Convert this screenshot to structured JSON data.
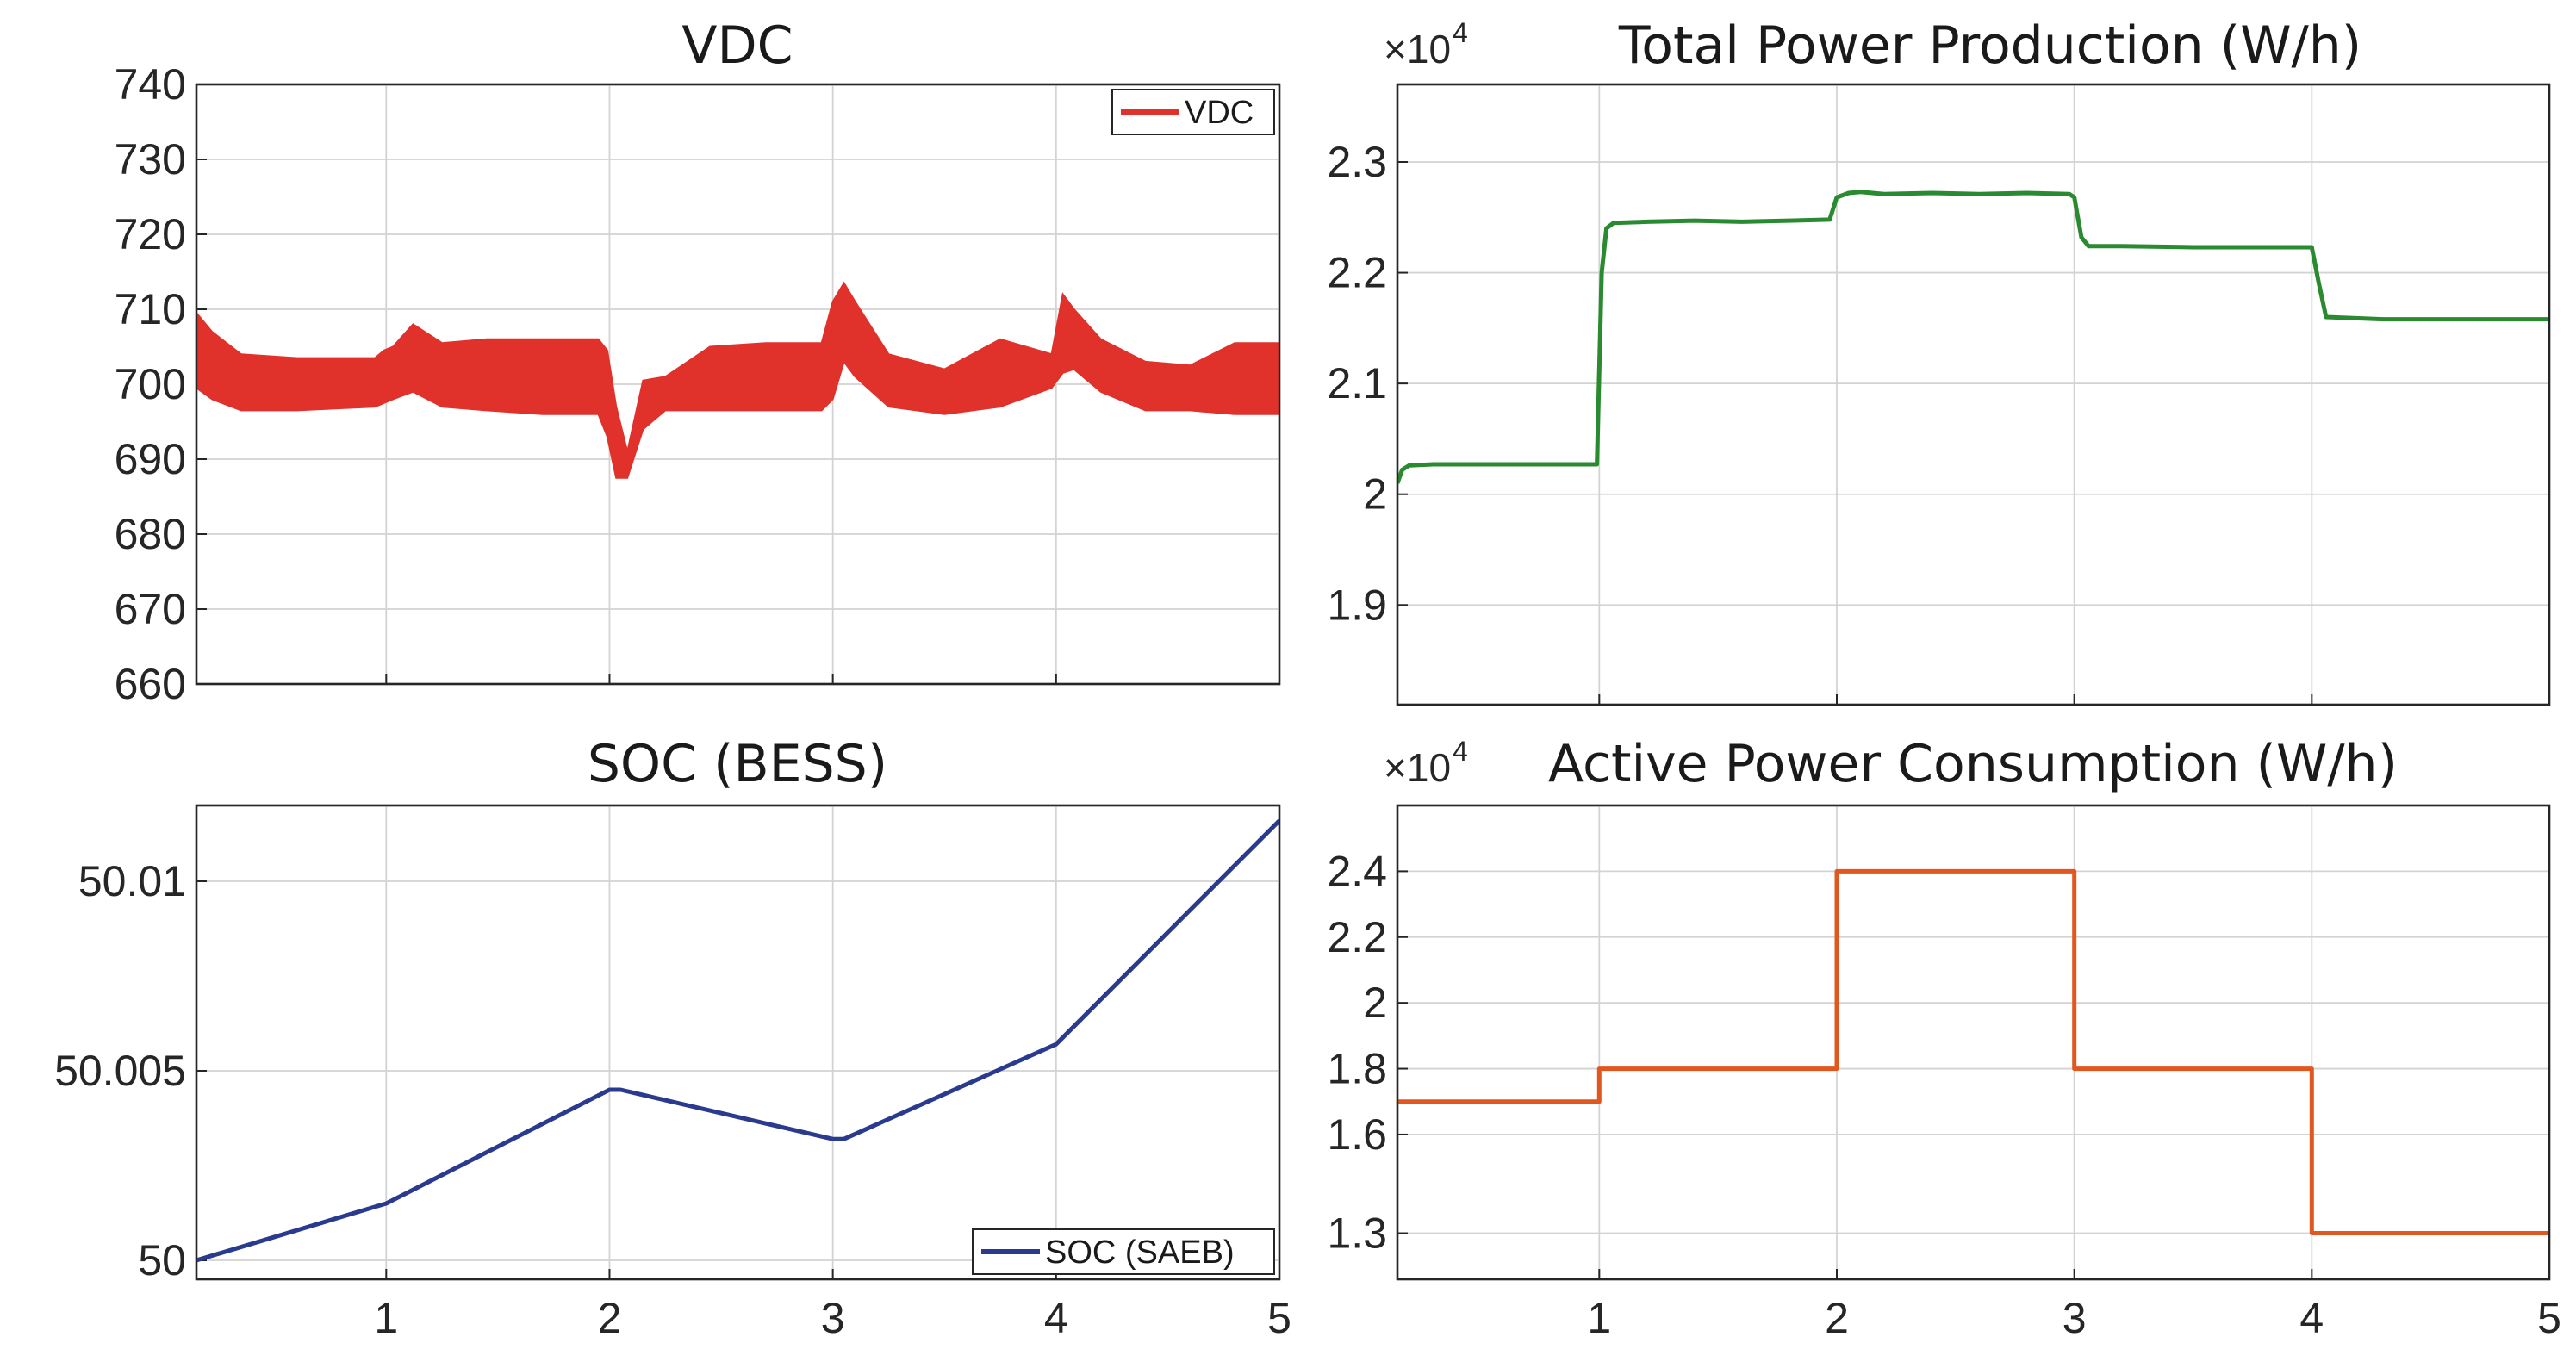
{
  "chart_data": [
    {
      "type": "line",
      "title": "VDC",
      "xlim": [
        0.15,
        5
      ],
      "ylim": [
        660,
        740
      ],
      "xticks": [
        1,
        2,
        3,
        4,
        5
      ],
      "yticks": [
        660,
        670,
        680,
        690,
        700,
        710,
        720,
        730,
        740
      ],
      "ytick_labels": [
        "660",
        "670",
        "680",
        "690",
        "700",
        "710",
        "720",
        "730",
        "740"
      ],
      "show_xtick_labels": false,
      "grid": true,
      "legend": "top-right",
      "color": "#e0312b",
      "series": [
        {
          "name": "VDC",
          "band": true,
          "x": [
            0.15,
            0.22,
            0.35,
            0.6,
            0.95,
            0.99,
            1.03,
            1.12,
            1.25,
            1.45,
            1.7,
            1.95,
            1.99,
            2.03,
            2.08,
            2.15,
            2.25,
            2.45,
            2.7,
            2.95,
            3.0,
            3.05,
            3.1,
            3.25,
            3.5,
            3.75,
            3.98,
            4.03,
            4.08,
            4.2,
            4.4,
            4.6,
            4.8,
            5.0
          ],
          "upper": [
            709.5,
            707.0,
            704.0,
            703.5,
            703.5,
            704.5,
            705.0,
            708.0,
            705.5,
            706.0,
            706.0,
            706.0,
            704.5,
            697.0,
            691.0,
            700.5,
            701.0,
            705.0,
            705.5,
            705.5,
            711.0,
            713.5,
            711.0,
            704.0,
            702.0,
            706.0,
            704.0,
            712.0,
            710.0,
            706.0,
            703.0,
            702.5,
            705.5,
            705.5
          ],
          "lower": [
            699.5,
            698.0,
            696.5,
            696.5,
            697.0,
            697.5,
            698.0,
            699.0,
            697.0,
            696.5,
            696.0,
            696.0,
            693.0,
            687.5,
            687.5,
            694.0,
            696.5,
            696.5,
            696.5,
            696.5,
            698.0,
            703.0,
            701.0,
            697.0,
            696.0,
            697.0,
            699.5,
            701.5,
            702.0,
            699.0,
            696.5,
            696.5,
            696.0,
            696.0
          ]
        }
      ]
    },
    {
      "type": "line",
      "title": "Total Power Production (W/h)",
      "multiplier_base": "×10",
      "multiplier_exp": "4",
      "xlim": [
        0.15,
        5
      ],
      "ylim": [
        1.81,
        2.37
      ],
      "xticks": [
        1,
        2,
        3,
        4,
        5
      ],
      "yticks": [
        1.9,
        2.0,
        2.1,
        2.2,
        2.3
      ],
      "ytick_labels": [
        "1.9",
        "2",
        "2.1",
        "2.2",
        "2.3"
      ],
      "show_xtick_labels": false,
      "grid": true,
      "color": "#2a8a2f",
      "series": [
        {
          "x": [
            0.15,
            0.17,
            0.2,
            0.3,
            0.6,
            0.9,
            0.99,
            1.01,
            1.03,
            1.06,
            1.2,
            1.4,
            1.6,
            1.8,
            1.97,
            2.0,
            2.05,
            2.1,
            2.2,
            2.4,
            2.6,
            2.8,
            2.98,
            3.0,
            3.03,
            3.06,
            3.2,
            3.5,
            3.8,
            4.0,
            4.03,
            4.06,
            4.3,
            4.6,
            5.0
          ],
          "y": [
            2.01,
            2.022,
            2.026,
            2.027,
            2.027,
            2.027,
            2.027,
            2.2,
            2.24,
            2.245,
            2.246,
            2.247,
            2.246,
            2.247,
            2.248,
            2.268,
            2.272,
            2.273,
            2.271,
            2.272,
            2.271,
            2.272,
            2.271,
            2.268,
            2.232,
            2.224,
            2.224,
            2.223,
            2.223,
            2.223,
            2.19,
            2.16,
            2.158,
            2.158,
            2.158
          ]
        }
      ]
    },
    {
      "type": "line",
      "title": "SOC (BESS)",
      "xlim": [
        0.15,
        5
      ],
      "ylim": [
        49.9995,
        50.012
      ],
      "xticks": [
        1,
        2,
        3,
        4,
        5
      ],
      "xtick_labels": [
        "1",
        "2",
        "3",
        "4",
        "5"
      ],
      "yticks": [
        50.0,
        50.005,
        50.01
      ],
      "ytick_labels": [
        "50",
        "50.005",
        "50.01"
      ],
      "show_xtick_labels": true,
      "grid": true,
      "legend": "bottom-right",
      "color": "#2a3b8f",
      "series": [
        {
          "name": "SOC (SAEB)",
          "x": [
            0.15,
            1.0,
            2.0,
            2.05,
            3.0,
            3.05,
            4.0,
            5.0
          ],
          "y": [
            50.0,
            50.0015,
            50.0045,
            50.0045,
            50.0032,
            50.0032,
            50.0057,
            50.0116
          ]
        }
      ]
    },
    {
      "type": "line",
      "title": "Active Power Consumption (W/h)",
      "multiplier_base": "×10",
      "multiplier_exp": "4",
      "xlim": [
        0.15,
        5
      ],
      "ylim": [
        1.16,
        2.6
      ],
      "xticks": [
        1,
        2,
        3,
        4,
        5
      ],
      "xtick_labels": [
        "1",
        "2",
        "3",
        "4",
        "5"
      ],
      "yticks": [
        1.3,
        1.6,
        1.8,
        2.0,
        2.2,
        2.4
      ],
      "ytick_labels": [
        "1.3",
        "1.6",
        "1.8",
        "2",
        "2.2",
        "2.4"
      ],
      "show_xtick_labels": true,
      "grid": true,
      "color": "#e0581f",
      "series": [
        {
          "x": [
            0.15,
            1.0,
            1.0,
            2.0,
            2.0,
            3.0,
            3.0,
            4.0,
            4.0,
            5.0
          ],
          "y": [
            1.7,
            1.7,
            1.8,
            1.8,
            2.4,
            2.4,
            1.8,
            1.8,
            1.3,
            1.3
          ]
        }
      ]
    }
  ]
}
